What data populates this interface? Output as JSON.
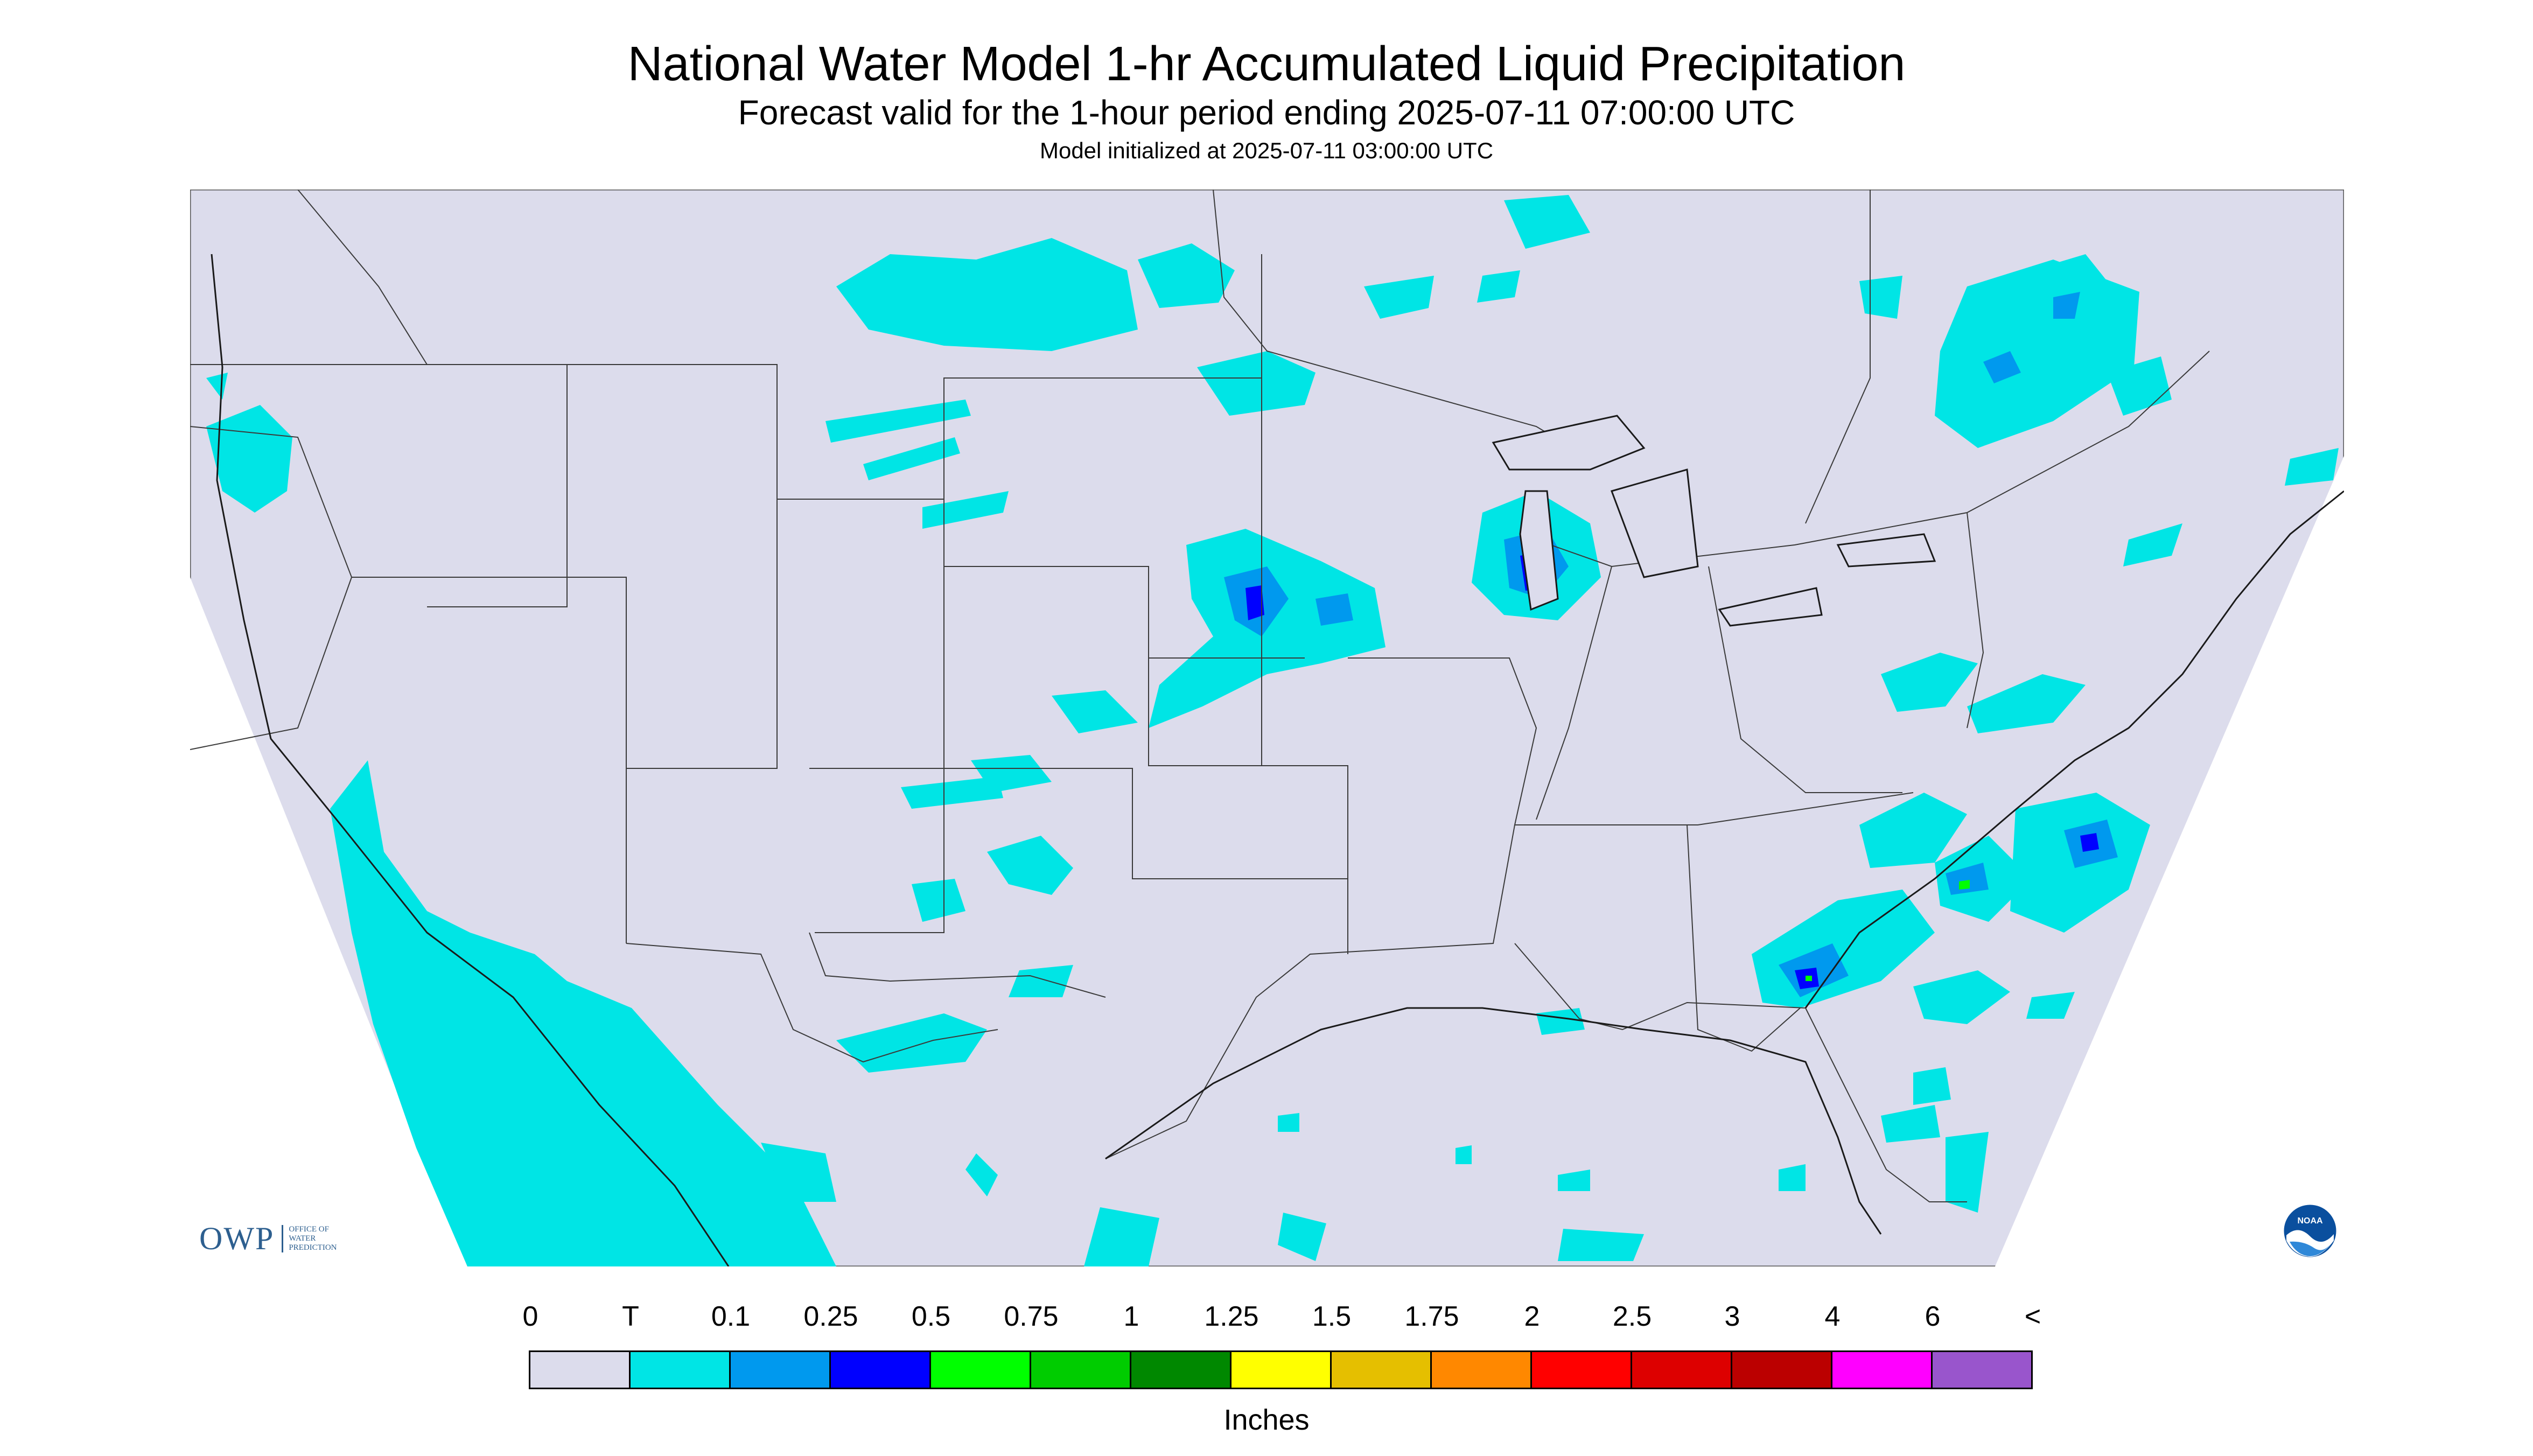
{
  "header": {
    "title": "National Water Model 1-hr Accumulated Liquid Precipitation",
    "subtitle": "Forecast valid for the 1-hour period ending 2025-07-11 07:00:00 UTC",
    "init": "Model initialized at 2025-07-11 03:00:00 UTC"
  },
  "logos": {
    "owp_mark": "OWP",
    "owp_lines": [
      "OFFICE OF",
      "WATER",
      "PREDICTION"
    ],
    "noaa": "NOAA"
  },
  "colors": {
    "background": "#dcdcec",
    "map_outline": "#555555",
    "state_lines": "#3a3a3a"
  },
  "legend": {
    "unit": "Inches",
    "tick_labels": [
      "0",
      "T",
      "0.1",
      "0.25",
      "0.5",
      "0.75",
      "1",
      "1.25",
      "1.5",
      "1.75",
      "2",
      "2.5",
      "3",
      "4",
      "6",
      "<"
    ],
    "colors": [
      "#dcdcec",
      "#00e5e5",
      "#0099ee",
      "#0000ff",
      "#00ff00",
      "#00cc00",
      "#008800",
      "#ffff00",
      "#e5bf00",
      "#ff8800",
      "#ff0000",
      "#dd0000",
      "#bb0000",
      "#ff00ff",
      "#9955cc"
    ]
  }
}
